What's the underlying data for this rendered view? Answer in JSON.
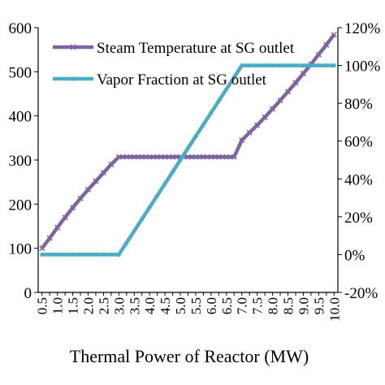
{
  "chart_data": {
    "type": "line",
    "xlabel": "Thermal Power of Reactor (MW)",
    "x": [
      0.5,
      0.75,
      1.0,
      1.25,
      1.5,
      1.75,
      2.0,
      2.25,
      2.5,
      2.75,
      3.0,
      3.25,
      3.5,
      3.75,
      4.0,
      4.25,
      4.5,
      4.75,
      5.0,
      5.25,
      5.5,
      5.75,
      6.0,
      6.25,
      6.5,
      6.75,
      7.0,
      7.25,
      7.5,
      7.75,
      8.0,
      8.25,
      8.5,
      8.75,
      9.0,
      9.25,
      9.5,
      9.75,
      10.0
    ],
    "x_tick_labels": [
      "0.5",
      "1.0",
      "1.5",
      "2.0",
      "2.5",
      "3.0",
      "3.5",
      "4.0",
      "4.5",
      "5.0",
      "5.5",
      "6.0",
      "6.5",
      "7.0",
      "7.5",
      "8.0",
      "8.5",
      "9.0",
      "9.5",
      "10.0"
    ],
    "y_left": {
      "ylim": [
        0,
        600
      ],
      "ticks": [
        0,
        100,
        200,
        300,
        400,
        500,
        600
      ],
      "tick_labels": [
        "0",
        "100",
        "200",
        "300",
        "400",
        "500",
        "600"
      ]
    },
    "y_right": {
      "ylim": [
        -20,
        120
      ],
      "ticks": [
        -20,
        0,
        20,
        40,
        60,
        80,
        100,
        120
      ],
      "tick_labels": [
        "-20%",
        "0%",
        "20%",
        "40%",
        "60%",
        "80%",
        "100%",
        "120%"
      ]
    },
    "grid": false,
    "legend_position": "top-left",
    "series": [
      {
        "name": "Steam Temperature at SG outlet",
        "axis": "left",
        "color": "#8064a2",
        "marker": "x",
        "values": [
          100,
          123,
          147,
          170,
          192,
          213,
          233,
          252,
          271,
          290,
          307,
          307,
          307,
          307,
          307,
          307,
          307,
          307,
          307,
          307,
          307,
          307,
          307,
          307,
          307,
          307,
          345,
          362,
          379,
          397,
          416,
          435,
          455,
          475,
          496,
          517,
          539,
          561,
          584
        ]
      },
      {
        "name": "Vapor Fraction at SG outlet",
        "axis": "right",
        "color": "#4bacc6",
        "marker": "dot",
        "values": [
          0,
          0,
          0,
          0,
          0,
          0,
          0,
          0,
          0,
          0,
          0,
          6.25,
          12.5,
          18.75,
          25,
          31.25,
          37.5,
          43.75,
          50,
          56.25,
          62.5,
          68.75,
          75,
          81.25,
          87.5,
          93.75,
          100,
          100,
          100,
          100,
          100,
          100,
          100,
          100,
          100,
          100,
          100,
          100,
          100
        ]
      }
    ]
  }
}
